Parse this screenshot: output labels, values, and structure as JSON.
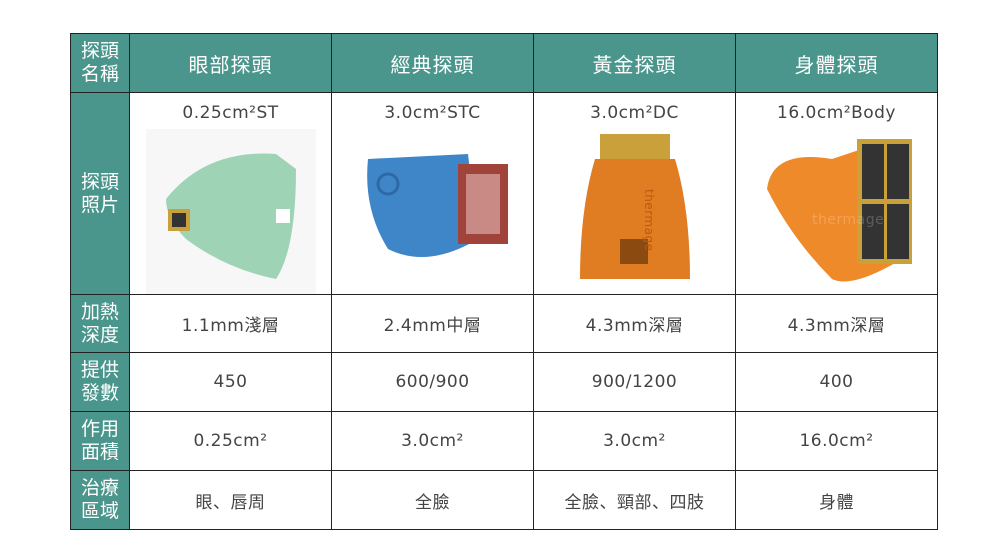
{
  "header": {
    "corner": "探頭名稱",
    "columns": [
      "眼部探頭",
      "經典探頭",
      "黃金探頭",
      "身體探頭"
    ]
  },
  "rows": [
    {
      "label": "探頭照片",
      "values": [
        "0.25cm²ST",
        "3.0cm²STC",
        "3.0cm²DC",
        "16.0cm²Body"
      ]
    },
    {
      "label": "加熱深度",
      "values": [
        "1.1mm淺層",
        "2.4mm中層",
        "4.3mm深層",
        "4.3mm深層"
      ]
    },
    {
      "label": "提供發數",
      "values": [
        "450",
        "600/900",
        "900/1200",
        "400"
      ]
    },
    {
      "label": "作用面積",
      "values": [
        "0.25cm²",
        "3.0cm²",
        "3.0cm²",
        "16.0cm²"
      ]
    },
    {
      "label": "治療區域",
      "values": [
        "眼、唇周",
        "全臉",
        "全臉、頸部、四肢",
        "身體"
      ]
    }
  ],
  "logo_text": "thermage",
  "colors": {
    "header": "#4b968c",
    "eye_probe": "#9fd3b5",
    "classic_probe": "#3f86c9",
    "gold_probe": "#e07c22",
    "body_probe": "#ef8a2a"
  }
}
